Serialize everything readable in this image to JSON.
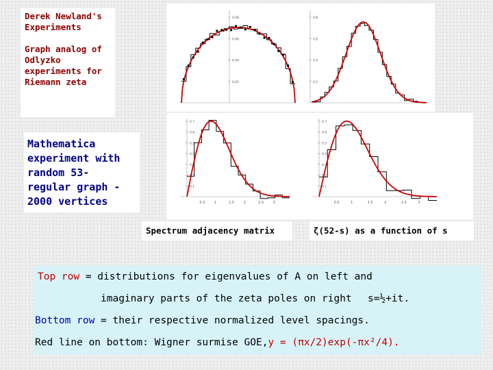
{
  "title_box": {
    "title": [
      "Derek Newland's",
      "Experiments"
    ],
    "subtitle": [
      "Graph analog of",
      "Odlyzko",
      "experiments for",
      "Riemann zeta"
    ]
  },
  "math_box": {
    "lines": [
      "Mathematica",
      "experiment with",
      "random 53-",
      "regular graph -",
      "2000 vertices"
    ]
  },
  "captions": {
    "left": "Spectrum adjacency matrix",
    "right": "ζ(52-s) as a function of s"
  },
  "bottom": {
    "l1_a": "Top row",
    "l1_b": " = distributions for eigenvalues of A on left and",
    "l2_a": "imaginary parts of the zeta poles on right",
    "l2_b": "s=½+it.",
    "l3_a": "Bottom row",
    "l3_b": " = their respective normalized level spacings.",
    "l4_a": "Red line on bottom: Wigner surmise GOE,",
    "l4_b": "y = (πx/2)exp(-πx²/4)."
  },
  "colors": {
    "curve": "#cc0000",
    "step": "#000000",
    "title_text": "#8b0000",
    "math_text": "#000080",
    "bottom_bg": "#d7f3f7"
  },
  "chart_data": [
    {
      "type": "line",
      "name": "top-left-eigenvalue-distribution",
      "ticks_y": [
        "0.08",
        "0.06",
        "0.04",
        "0.02"
      ]
    },
    {
      "type": "line",
      "name": "top-right-zeta-poles",
      "ticks_y": [
        "0.8",
        "0.6",
        "0.4",
        "0.2"
      ]
    },
    {
      "type": "line",
      "name": "bottom-left-spacing",
      "ticks_x": [
        "0.5",
        "1",
        "1.5",
        "2",
        "2.5",
        "3"
      ],
      "ticks_y": [
        "0.7",
        "0.6",
        "0.5",
        "0.4",
        "0.3",
        "0.2",
        "0.1"
      ]
    },
    {
      "type": "line",
      "name": "bottom-right-spacing",
      "ticks_x": [
        "0.5",
        "1",
        "1.5",
        "2",
        "2.5",
        "3"
      ],
      "ticks_y": [
        "0.7",
        "0.6",
        "0.5",
        "0.4",
        "0.3",
        "0.2",
        "0.1"
      ]
    }
  ]
}
